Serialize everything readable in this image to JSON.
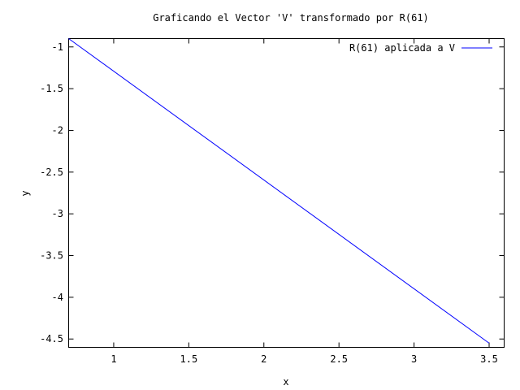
{
  "chart_data": {
    "type": "line",
    "title": "Graficando el Vector 'V' transformado por R(61)",
    "xlabel": "x",
    "ylabel": "y",
    "xlim": [
      0.7,
      3.6
    ],
    "ylim": [
      -4.6,
      -0.9
    ],
    "x_ticks": [
      1,
      1.5,
      2,
      2.5,
      3,
      3.5
    ],
    "y_ticks": [
      -1,
      -1.5,
      -2,
      -2.5,
      -3,
      -3.5,
      -4,
      -4.5
    ],
    "x_tick_labels": [
      "1",
      "1.5",
      "2",
      "2.5",
      "3",
      "3.5"
    ],
    "y_tick_labels": [
      "-1",
      "-1.5",
      "-2",
      "-2.5",
      "-3",
      "-3.5",
      "-4",
      "-4.5"
    ],
    "grid": false,
    "legend_position": "top-right",
    "series": [
      {
        "name": "R(61) aplicada a V",
        "color": "#0000ff",
        "x": [
          0.7,
          3.5
        ],
        "y": [
          -0.9,
          -4.55
        ]
      }
    ]
  }
}
